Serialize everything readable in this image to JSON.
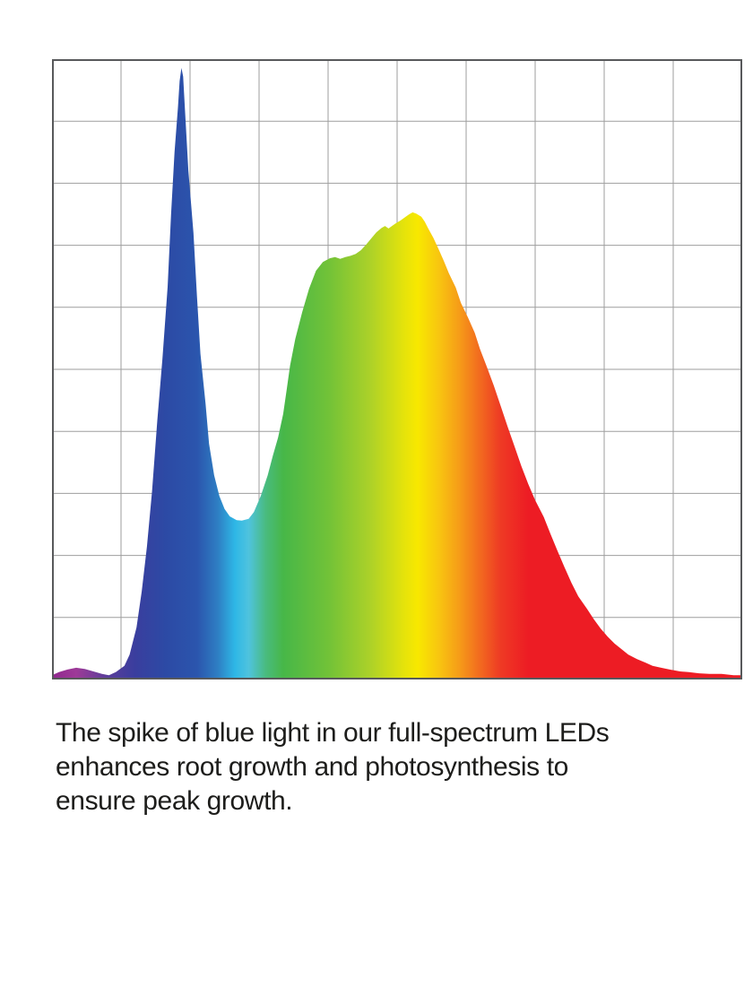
{
  "page": {
    "background_color": "#ffffff"
  },
  "caption": {
    "text": "The spike of blue light in our full-spectrum LEDs enhances root growth and photosynthesis to ensure peak growth.",
    "lines": [
      "The spike of blue light in our full-spectrum LEDs",
      "enhances root growth and photosynthesis to",
      "ensure peak growth."
    ],
    "color": "#1d1d1b"
  },
  "chart_data": {
    "type": "area",
    "title": "",
    "xlabel": "",
    "ylabel": "",
    "axis_tick_labels_visible": false,
    "xlim": [
      380,
      780
    ],
    "ylim": [
      0,
      1
    ],
    "grid": {
      "on": true,
      "cols": 10,
      "rows": 10,
      "line_color": "#9e9e9e",
      "frame_color": "#58595b"
    },
    "series_name": "Full-spectrum LED relative spectral power (wavelength nm estimated from spectrum colors; no axis labels shown)",
    "points": [
      [
        380,
        0.007
      ],
      [
        384,
        0.012
      ],
      [
        389,
        0.016
      ],
      [
        394,
        0.019
      ],
      [
        399,
        0.017
      ],
      [
        404,
        0.013
      ],
      [
        409,
        0.009
      ],
      [
        413,
        0.007
      ],
      [
        417,
        0.012
      ],
      [
        422,
        0.022
      ],
      [
        425,
        0.04
      ],
      [
        429,
        0.084
      ],
      [
        432,
        0.142
      ],
      [
        435,
        0.214
      ],
      [
        438,
        0.303
      ],
      [
        441,
        0.416
      ],
      [
        444,
        0.517
      ],
      [
        447,
        0.633
      ],
      [
        449,
        0.749
      ],
      [
        451,
        0.85
      ],
      [
        453,
        0.922
      ],
      [
        454,
        0.965
      ],
      [
        455,
        0.986
      ],
      [
        456,
        0.972
      ],
      [
        457,
        0.922
      ],
      [
        459,
        0.821
      ],
      [
        462,
        0.72
      ],
      [
        464,
        0.618
      ],
      [
        466,
        0.525
      ],
      [
        469,
        0.445
      ],
      [
        471,
        0.38
      ],
      [
        474,
        0.329
      ],
      [
        477,
        0.296
      ],
      [
        480,
        0.275
      ],
      [
        483,
        0.263
      ],
      [
        487,
        0.257
      ],
      [
        490,
        0.256
      ],
      [
        494,
        0.259
      ],
      [
        497,
        0.27
      ],
      [
        501,
        0.296
      ],
      [
        505,
        0.329
      ],
      [
        508,
        0.361
      ],
      [
        511,
        0.39
      ],
      [
        514,
        0.428
      ],
      [
        516,
        0.467
      ],
      [
        518,
        0.506
      ],
      [
        521,
        0.549
      ],
      [
        525,
        0.592
      ],
      [
        529,
        0.63
      ],
      [
        533,
        0.659
      ],
      [
        537,
        0.673
      ],
      [
        541,
        0.679
      ],
      [
        544,
        0.681
      ],
      [
        547,
        0.678
      ],
      [
        550,
        0.681
      ],
      [
        553,
        0.683
      ],
      [
        556,
        0.686
      ],
      [
        559,
        0.692
      ],
      [
        562,
        0.701
      ],
      [
        565,
        0.711
      ],
      [
        568,
        0.721
      ],
      [
        571,
        0.728
      ],
      [
        573,
        0.731
      ],
      [
        575,
        0.727
      ],
      [
        577,
        0.731
      ],
      [
        579,
        0.735
      ],
      [
        582,
        0.74
      ],
      [
        585,
        0.746
      ],
      [
        587,
        0.75
      ],
      [
        589,
        0.753
      ],
      [
        591,
        0.751
      ],
      [
        594,
        0.746
      ],
      [
        596,
        0.738
      ],
      [
        598,
        0.727
      ],
      [
        601,
        0.712
      ],
      [
        604,
        0.694
      ],
      [
        607,
        0.675
      ],
      [
        610,
        0.655
      ],
      [
        614,
        0.632
      ],
      [
        617,
        0.607
      ],
      [
        621,
        0.584
      ],
      [
        625,
        0.559
      ],
      [
        628,
        0.533
      ],
      [
        632,
        0.504
      ],
      [
        636,
        0.474
      ],
      [
        640,
        0.441
      ],
      [
        644,
        0.408
      ],
      [
        648,
        0.376
      ],
      [
        652,
        0.344
      ],
      [
        656,
        0.315
      ],
      [
        660,
        0.289
      ],
      [
        665,
        0.262
      ],
      [
        669,
        0.234
      ],
      [
        673,
        0.207
      ],
      [
        677,
        0.181
      ],
      [
        681,
        0.156
      ],
      [
        685,
        0.134
      ],
      [
        690,
        0.114
      ],
      [
        694,
        0.097
      ],
      [
        698,
        0.082
      ],
      [
        702,
        0.069
      ],
      [
        706,
        0.058
      ],
      [
        710,
        0.049
      ],
      [
        714,
        0.04
      ],
      [
        719,
        0.033
      ],
      [
        724,
        0.027
      ],
      [
        728,
        0.022
      ],
      [
        733,
        0.019
      ],
      [
        738,
        0.016
      ],
      [
        744,
        0.013
      ],
      [
        749,
        0.012
      ],
      [
        755,
        0.01
      ],
      [
        761,
        0.009
      ],
      [
        768,
        0.009
      ],
      [
        775,
        0.007
      ],
      [
        780,
        0.007
      ]
    ],
    "gradient_stops": [
      {
        "offset": 0.0,
        "color": "#90278e"
      },
      {
        "offset": 0.035,
        "color": "#9e3a98"
      },
      {
        "offset": 0.08,
        "color": "#5a3d9a"
      },
      {
        "offset": 0.12,
        "color": "#3a3e9e"
      },
      {
        "offset": 0.165,
        "color": "#2c4aa5"
      },
      {
        "offset": 0.21,
        "color": "#2b55ad"
      },
      {
        "offset": 0.24,
        "color": "#2e7ec3"
      },
      {
        "offset": 0.265,
        "color": "#2eb7e6"
      },
      {
        "offset": 0.285,
        "color": "#4fc3de"
      },
      {
        "offset": 0.31,
        "color": "#49bb7e"
      },
      {
        "offset": 0.335,
        "color": "#47b748"
      },
      {
        "offset": 0.4,
        "color": "#71c238"
      },
      {
        "offset": 0.46,
        "color": "#abd129"
      },
      {
        "offset": 0.51,
        "color": "#e5e30b"
      },
      {
        "offset": 0.53,
        "color": "#f8e800"
      },
      {
        "offset": 0.56,
        "color": "#f8c610"
      },
      {
        "offset": 0.59,
        "color": "#f69c18"
      },
      {
        "offset": 0.62,
        "color": "#f26a1f"
      },
      {
        "offset": 0.65,
        "color": "#ee3a24"
      },
      {
        "offset": 0.69,
        "color": "#ed1c24"
      },
      {
        "offset": 1.0,
        "color": "#ed1c24"
      }
    ],
    "legend": {
      "visible": false
    }
  }
}
